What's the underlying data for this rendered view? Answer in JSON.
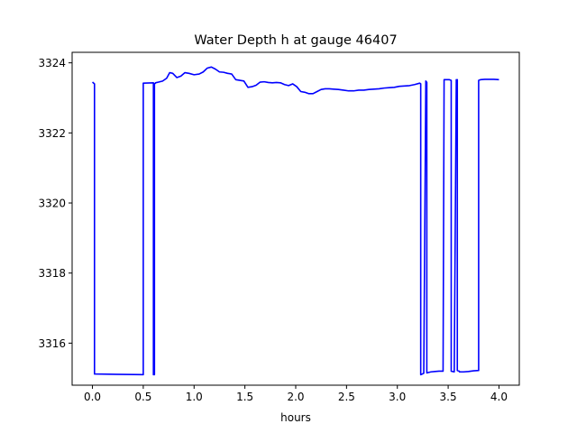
{
  "chart_data": {
    "type": "line",
    "title": "Water Depth h at gauge 46407",
    "xlabel": "hours",
    "ylabel": "",
    "xlim": [
      -0.2,
      4.2
    ],
    "ylim": [
      3314.8,
      3324.3
    ],
    "xticks": [
      0.0,
      0.5,
      1.0,
      1.5,
      2.0,
      2.5,
      3.0,
      3.5,
      4.0
    ],
    "xtick_labels": [
      "0.0",
      "0.5",
      "1.0",
      "1.5",
      "2.0",
      "2.5",
      "3.0",
      "3.5",
      "4.0"
    ],
    "yticks": [
      3316,
      3318,
      3320,
      3322,
      3324
    ],
    "ytick_labels": [
      "3316",
      "3318",
      "3320",
      "3322",
      "3324"
    ],
    "grid": false,
    "color": "#0000ff",
    "series": [
      {
        "x": [
          0.0,
          0.02,
          0.02,
          0.5,
          0.5,
          0.6,
          0.6,
          0.61,
          0.61,
          0.62,
          0.62,
          0.65,
          0.69,
          0.73,
          0.76,
          0.79,
          0.83,
          0.87,
          0.91,
          0.95,
          1.0,
          1.05,
          1.09,
          1.13,
          1.17,
          1.21,
          1.25,
          1.29,
          1.33,
          1.37,
          1.41,
          1.45,
          1.49,
          1.53,
          1.57,
          1.61,
          1.65,
          1.69,
          1.73,
          1.77,
          1.81,
          1.85,
          1.89,
          1.93,
          1.97,
          2.01,
          2.05,
          2.09,
          2.13,
          2.17,
          2.21,
          2.25,
          2.29,
          2.33,
          2.37,
          2.42,
          2.47,
          2.52,
          2.57,
          2.62,
          2.67,
          2.72,
          2.77,
          2.82,
          2.87,
          2.92,
          2.97,
          3.02,
          3.07,
          3.12,
          3.17,
          3.22,
          3.23,
          3.23,
          3.26,
          3.28,
          3.28,
          3.29,
          3.29,
          3.33,
          3.37,
          3.41,
          3.45,
          3.46,
          3.46,
          3.51,
          3.53,
          3.53,
          3.56,
          3.58,
          3.58,
          3.59,
          3.59,
          3.61,
          3.61,
          3.65,
          3.7,
          3.75,
          3.8,
          3.8,
          3.82,
          3.86,
          3.9,
          3.95,
          4.0
        ],
        "y": [
          3323.45,
          3323.4,
          3315.12,
          3315.1,
          3323.42,
          3323.43,
          3315.1,
          3315.1,
          3323.4,
          3323.42,
          3323.43,
          3323.45,
          3323.48,
          3323.56,
          3323.72,
          3323.7,
          3323.58,
          3323.62,
          3323.72,
          3323.7,
          3323.66,
          3323.68,
          3323.74,
          3323.85,
          3323.88,
          3323.82,
          3323.74,
          3323.73,
          3323.7,
          3323.68,
          3323.52,
          3323.5,
          3323.48,
          3323.3,
          3323.32,
          3323.36,
          3323.45,
          3323.46,
          3323.44,
          3323.43,
          3323.44,
          3323.43,
          3323.38,
          3323.35,
          3323.4,
          3323.32,
          3323.18,
          3323.16,
          3323.12,
          3323.12,
          3323.18,
          3323.24,
          3323.26,
          3323.26,
          3323.25,
          3323.24,
          3323.22,
          3323.2,
          3323.2,
          3323.22,
          3323.22,
          3323.24,
          3323.25,
          3323.26,
          3323.28,
          3323.29,
          3323.3,
          3323.33,
          3323.34,
          3323.35,
          3323.38,
          3323.42,
          3323.4,
          3315.1,
          3315.14,
          3323.4,
          3323.48,
          3323.44,
          3315.15,
          3315.18,
          3315.19,
          3315.2,
          3315.2,
          3323.5,
          3323.52,
          3323.52,
          3323.5,
          3315.2,
          3315.18,
          3323.52,
          3323.5,
          3323.52,
          3315.22,
          3315.2,
          3315.18,
          3315.18,
          3315.19,
          3315.21,
          3315.22,
          3323.5,
          3323.52,
          3323.53,
          3323.53,
          3323.53,
          3323.52
        ]
      }
    ]
  }
}
